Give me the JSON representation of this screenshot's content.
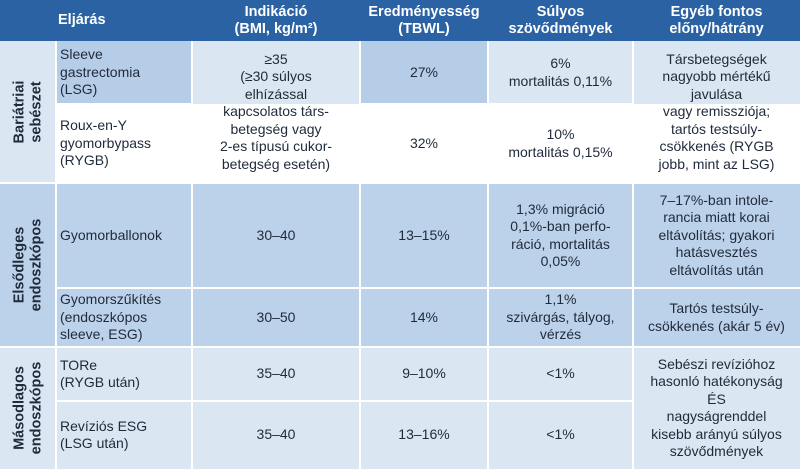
{
  "headers": {
    "procedure": "Eljárás",
    "indication": "Indikáció\n(BMI, kg/m²)",
    "efficacy": "Eredményesség\n(TBWL)",
    "complications": "Súlyos\nszövődmények",
    "other": "Egyéb fontos\nelőny/hátrány"
  },
  "groups": {
    "bariatric": "Bariátriai\nsebészet",
    "primary": "Elsődleges\nendoszkópos",
    "secondary": "Másodlagos\nendoszkópos"
  },
  "rows": {
    "lsg": {
      "procedure": "Sleeve\ngastrectomia\n(LSG)",
      "efficacy": "27%",
      "complications": "6%\nmortalitás 0,11%"
    },
    "rygb": {
      "procedure": "Roux-en-Y\ngyomorbypass\n(RYGB)",
      "efficacy": "32%",
      "complications": "10%\nmortalitás 0,15%"
    },
    "bariatric_indication": "≥35\n(≥30 súlyos\nelhízással\nkapcsolatos társ-\nbetegség vagy\n2-es típusú cukor-\nbetegség esetén)",
    "bariatric_other": "Társbetegségek\nnagyobb mértékű\njavulása\nvagy remissziója;\ntartós testsúly-\ncsökkenés (RYGB\njobb, mint az LSG)",
    "balloon": {
      "procedure": "Gyomorballonok",
      "indication": "30–40",
      "efficacy": "13–15%",
      "complications": "1,3% migráció\n0,1%-ban perfo-\nráció, mortalitás\n0,05%",
      "other": "7–17%-ban intole-\nrancia miatt korai\neltávolítás; gyakori\nhatásvesztés\neltávolítás után"
    },
    "esg": {
      "procedure": "Gyomorszűkítés\n(endoszkópos\nsleeve, ESG)",
      "indication": "30–50",
      "efficacy": "14%",
      "complications": "1,1%\nszivárgás, tályog,\nvérzés",
      "other": "Tartós testsúly-\ncsökkenés (akár 5 év)"
    },
    "tore": {
      "procedure": "TORe\n(RYGB után)",
      "indication": "35–40",
      "efficacy": "9–10%",
      "complications": "<1%"
    },
    "revesg": {
      "procedure": "Revíziós ESG\n(LSG után)",
      "indication": "35–40",
      "efficacy": "13–16%",
      "complications": "<1%"
    },
    "secondary_other": "Sebészi revízióhoz\nhasonló hatékonyság\nÉS\nnagyságrenddel\nkisebb arányú súlyos\nszövődmények"
  },
  "colors": {
    "header": "#2a62a4",
    "group_light": "#dbe6f3",
    "group_mid": "#bcd2ea",
    "shade": "#b6cde8"
  }
}
